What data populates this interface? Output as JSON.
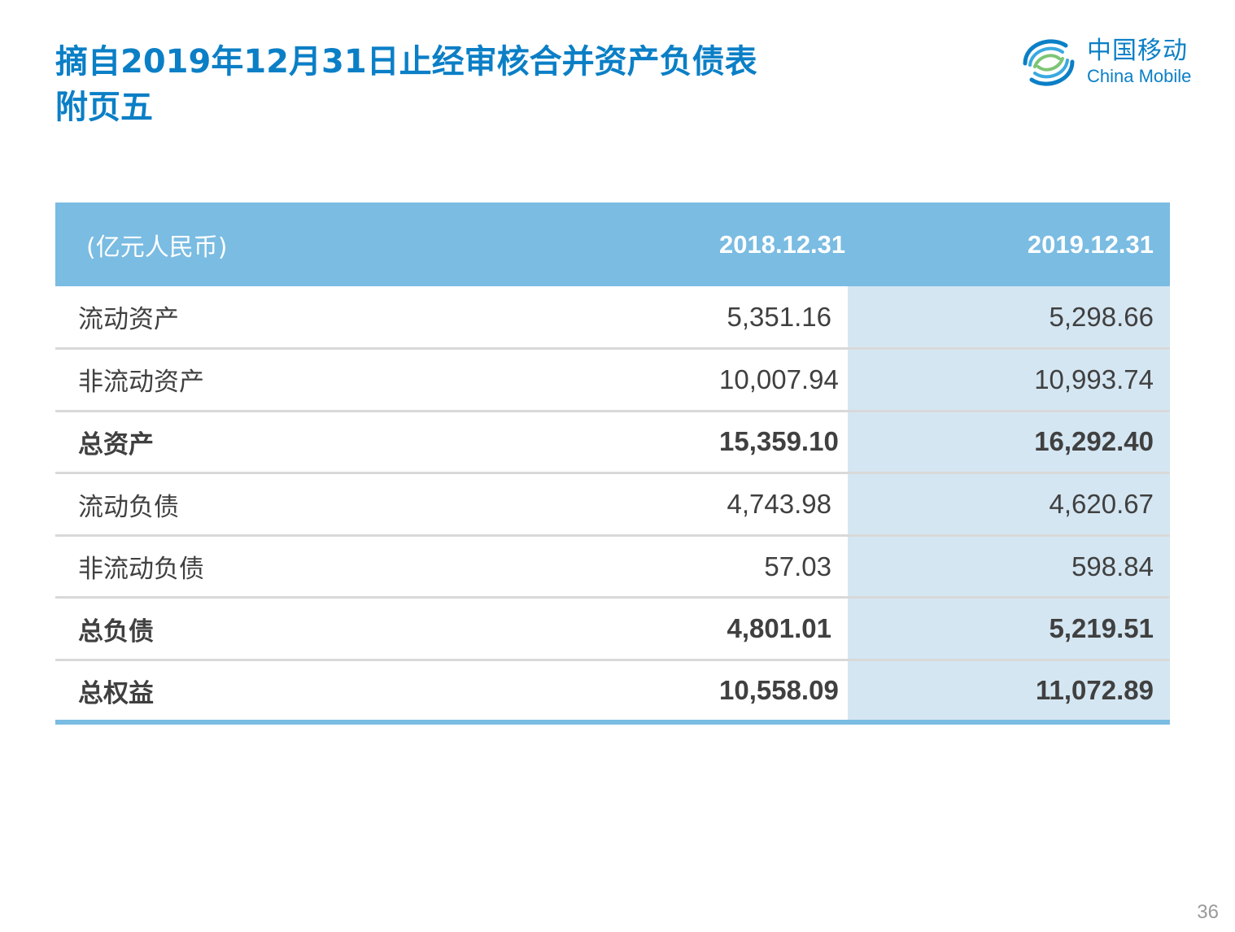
{
  "title": {
    "line1": "摘自2019年12月31日止经审核合并资产负债表",
    "line2": "附页五"
  },
  "logo": {
    "cn": "中国移动",
    "en": "China Mobile",
    "icon": "china-mobile-logo-icon",
    "color": "#0b7fc6"
  },
  "table": {
    "unit_label": "(亿元人民币)",
    "columns": [
      "2018.12.31",
      "2019.12.31"
    ],
    "rows": [
      {
        "label": "流动资产",
        "v2018": "5,351.16",
        "v2019": "5,298.66"
      },
      {
        "label": "非流动资产",
        "v2018": "10,007.94",
        "v2019": "10,993.74"
      },
      {
        "label": "总资产",
        "v2018": "15,359.10",
        "v2019": "16,292.40"
      },
      {
        "label": "流动负债",
        "v2018": "4,743.98",
        "v2019": "4,620.67"
      },
      {
        "label": "非流动负债",
        "v2018": "57.03",
        "v2019": "598.84"
      },
      {
        "label": "总负债",
        "v2018": "4,801.01",
        "v2019": "5,219.51"
      },
      {
        "label": "总权益",
        "v2018": "10,558.09",
        "v2019": "11,072.89"
      }
    ],
    "header_color": "#7abce2",
    "highlight_color": "#d4e6f2"
  },
  "page_number": "36"
}
